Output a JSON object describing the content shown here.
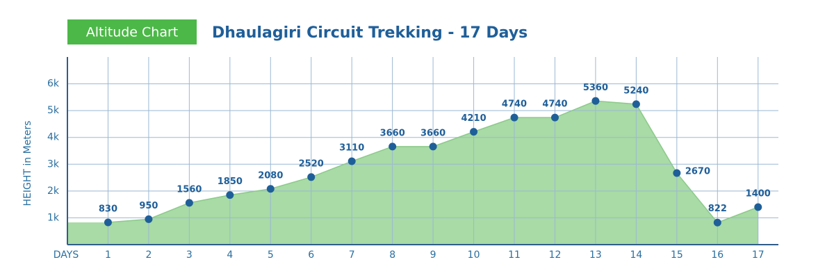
{
  "chart_data": {
    "type": "area",
    "badge": "Altitude Chart",
    "title": "Dhaulagiri Circuit Trekking - 17 Days",
    "y_label": "HEIGHT in Meters",
    "x_label": "DAYS",
    "x": [
      1,
      2,
      3,
      4,
      5,
      6,
      7,
      8,
      9,
      10,
      11,
      12,
      13,
      14,
      15,
      16,
      17
    ],
    "values": [
      830,
      950,
      1560,
      1850,
      2080,
      2520,
      3110,
      3660,
      3660,
      4210,
      4740,
      4740,
      5360,
      5240,
      2670,
      822,
      1400
    ],
    "color": "#a3d9a0",
    "marker_color": "#1f5f99",
    "xlim": [
      0,
      17.5
    ],
    "xticks": [
      1,
      2,
      3,
      4,
      5,
      6,
      7,
      8,
      9,
      10,
      11,
      12,
      13,
      14,
      15,
      16,
      17
    ],
    "ylim": [
      0,
      7000
    ],
    "yticks": [
      {
        "value": 1000,
        "label": "1k"
      },
      {
        "value": 2000,
        "label": "2k"
      },
      {
        "value": 3000,
        "label": "3k"
      },
      {
        "value": 4000,
        "label": "4k"
      },
      {
        "value": 5000,
        "label": "5k"
      },
      {
        "value": 6000,
        "label": "6k"
      }
    ],
    "grid": true
  }
}
